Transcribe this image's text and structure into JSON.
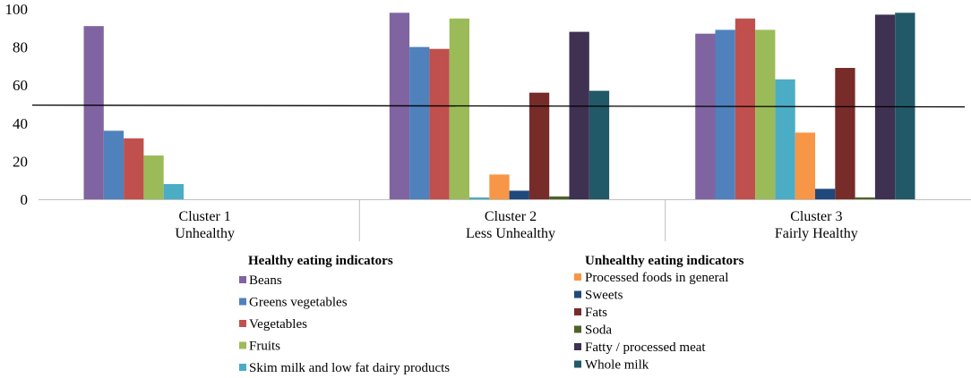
{
  "chart_data": {
    "type": "bar",
    "title": "",
    "xlabel": "",
    "ylabel": "",
    "ylim": [
      0,
      100
    ],
    "yticks": [
      "0",
      "20",
      "40",
      "60",
      "80",
      "100"
    ],
    "reference_line": 49,
    "categories": [
      {
        "line1": "Cluster 1",
        "line2": "Unhealthy"
      },
      {
        "line1": "Cluster 2",
        "line2": "Less Unhealthy"
      },
      {
        "line1": "Cluster 3",
        "line2": "Fairly Healthy"
      }
    ],
    "legend": {
      "healthy_title": "Healthy eating indicators",
      "unhealthy_title": "Unhealthy eating indicators"
    },
    "series": [
      {
        "name": "Beans",
        "group": "healthy",
        "color": "#8064A2",
        "values": [
          91,
          98,
          87
        ]
      },
      {
        "name": "Greens vegetables",
        "group": "healthy",
        "color": "#4F81BD",
        "values": [
          36,
          80,
          89
        ]
      },
      {
        "name": "Vegetables",
        "group": "healthy",
        "color": "#C0504D",
        "values": [
          32,
          79,
          95
        ]
      },
      {
        "name": "Fruits",
        "group": "healthy",
        "color": "#9BBB59",
        "values": [
          23,
          95,
          89
        ]
      },
      {
        "name": "Skim milk and low fat dairy products",
        "group": "healthy",
        "color": "#4BACC6",
        "values": [
          8,
          1,
          63
        ]
      },
      {
        "name": "Processed foods in general",
        "group": "unhealthy",
        "color": "#F79646",
        "values": [
          0,
          13,
          35
        ]
      },
      {
        "name": "Sweets",
        "group": "unhealthy",
        "color": "#1F497D",
        "values": [
          0,
          4.5,
          5.5
        ]
      },
      {
        "name": "Fats",
        "group": "unhealthy",
        "color": "#772C2A",
        "values": [
          0,
          56,
          69
        ]
      },
      {
        "name": "Soda",
        "group": "unhealthy",
        "color": "#4F6228",
        "values": [
          0,
          1.5,
          1
        ]
      },
      {
        "name": "Fatty / processed meat",
        "group": "unhealthy",
        "color": "#3F3151",
        "values": [
          0,
          88,
          97
        ]
      },
      {
        "name": "Whole milk",
        "group": "unhealthy",
        "color": "#215968",
        "values": [
          0,
          57,
          98
        ]
      }
    ]
  }
}
